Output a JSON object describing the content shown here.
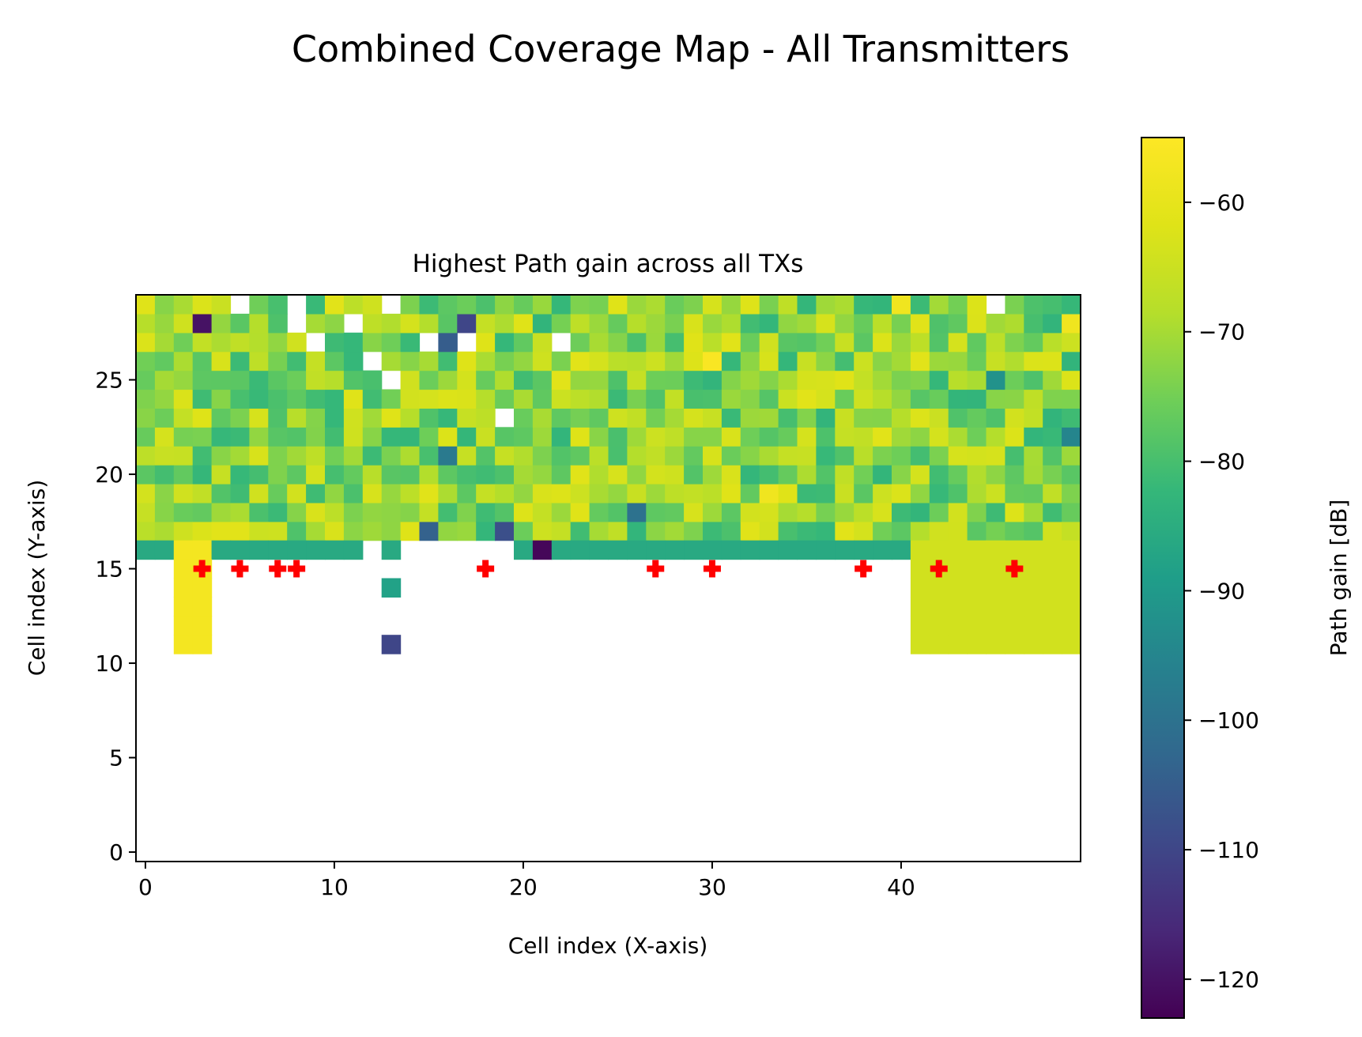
{
  "figure": {
    "suptitle": "Combined Coverage Map - All Transmitters"
  },
  "chart_data": {
    "type": "heatmap",
    "title": "Highest Path gain across all TXs",
    "xlabel": "Cell index (X-axis)",
    "ylabel": "Cell index (Y-axis)",
    "xlim": [
      -0.5,
      49.5
    ],
    "ylim": [
      -0.5,
      29.5
    ],
    "xticks": [
      0,
      10,
      20,
      30,
      40
    ],
    "yticks": [
      0,
      5,
      10,
      15,
      20,
      25
    ],
    "colormap": "viridis",
    "colorbar": {
      "label": "Path gain [dB]",
      "vmin": -123,
      "vmax": -55,
      "ticks": [
        -60,
        -70,
        -80,
        -90,
        -100,
        -110,
        -120
      ],
      "tick_labels": [
        "−60",
        "−70",
        "−80",
        "−90",
        "−100",
        "−110",
        "−120"
      ]
    },
    "nan_cells": [
      [
        5,
        29
      ],
      [
        8,
        29
      ],
      [
        13,
        29
      ],
      [
        45,
        29
      ],
      [
        8,
        28
      ],
      [
        11,
        28
      ],
      [
        15,
        27
      ],
      [
        9,
        27
      ],
      [
        17,
        27
      ],
      [
        22,
        27
      ],
      [
        12,
        26
      ],
      [
        13,
        25
      ],
      [
        19,
        23
      ],
      [
        12,
        16
      ],
      [
        14,
        16
      ],
      [
        15,
        16
      ],
      [
        16,
        16
      ],
      [
        17,
        16
      ],
      [
        18,
        16
      ],
      [
        19,
        16
      ]
    ],
    "transmitters": {
      "marker": "plus",
      "color": "#ff0000",
      "x": [
        3,
        5,
        7,
        8,
        18,
        27,
        30,
        38,
        42,
        46
      ],
      "y": [
        15,
        15,
        15,
        15,
        15,
        15,
        15,
        15,
        15,
        15
      ]
    },
    "regions": [
      {
        "x": [
          0,
          49
        ],
        "y": [
          17,
          29
        ],
        "value": -72,
        "description": "mixed"
      },
      {
        "x": [
          0,
          49
        ],
        "y": [
          16,
          16
        ],
        "value": -86
      },
      {
        "x": [
          2,
          3
        ],
        "y": [
          11,
          16
        ],
        "value": -57
      },
      {
        "x": [
          41,
          49
        ],
        "y": [
          11,
          16
        ],
        "value": -64
      },
      {
        "x": [
          13,
          13
        ],
        "y": [
          14,
          14
        ],
        "value": -88
      },
      {
        "x": [
          13,
          13
        ],
        "y": [
          11,
          11
        ],
        "value": -110
      }
    ],
    "cells": [
      {
        "x": 3,
        "y": 28,
        "value": -120
      },
      {
        "x": 17,
        "y": 28,
        "value": -110
      },
      {
        "x": 21,
        "y": 16,
        "value": -122
      },
      {
        "x": 16,
        "y": 27,
        "value": -105
      },
      {
        "x": 40,
        "y": 29,
        "value": -58
      },
      {
        "x": 30,
        "y": 26,
        "value": -56
      },
      {
        "x": 33,
        "y": 19,
        "value": -58
      },
      {
        "x": 26,
        "y": 18,
        "value": -100
      },
      {
        "x": 15,
        "y": 17,
        "value": -104
      },
      {
        "x": 19,
        "y": 17,
        "value": -108
      },
      {
        "x": 16,
        "y": 21,
        "value": -98
      },
      {
        "x": 49,
        "y": 22,
        "value": -95
      },
      {
        "x": 45,
        "y": 25,
        "value": -92
      },
      {
        "x": 49,
        "y": 28,
        "value": -58
      }
    ]
  }
}
